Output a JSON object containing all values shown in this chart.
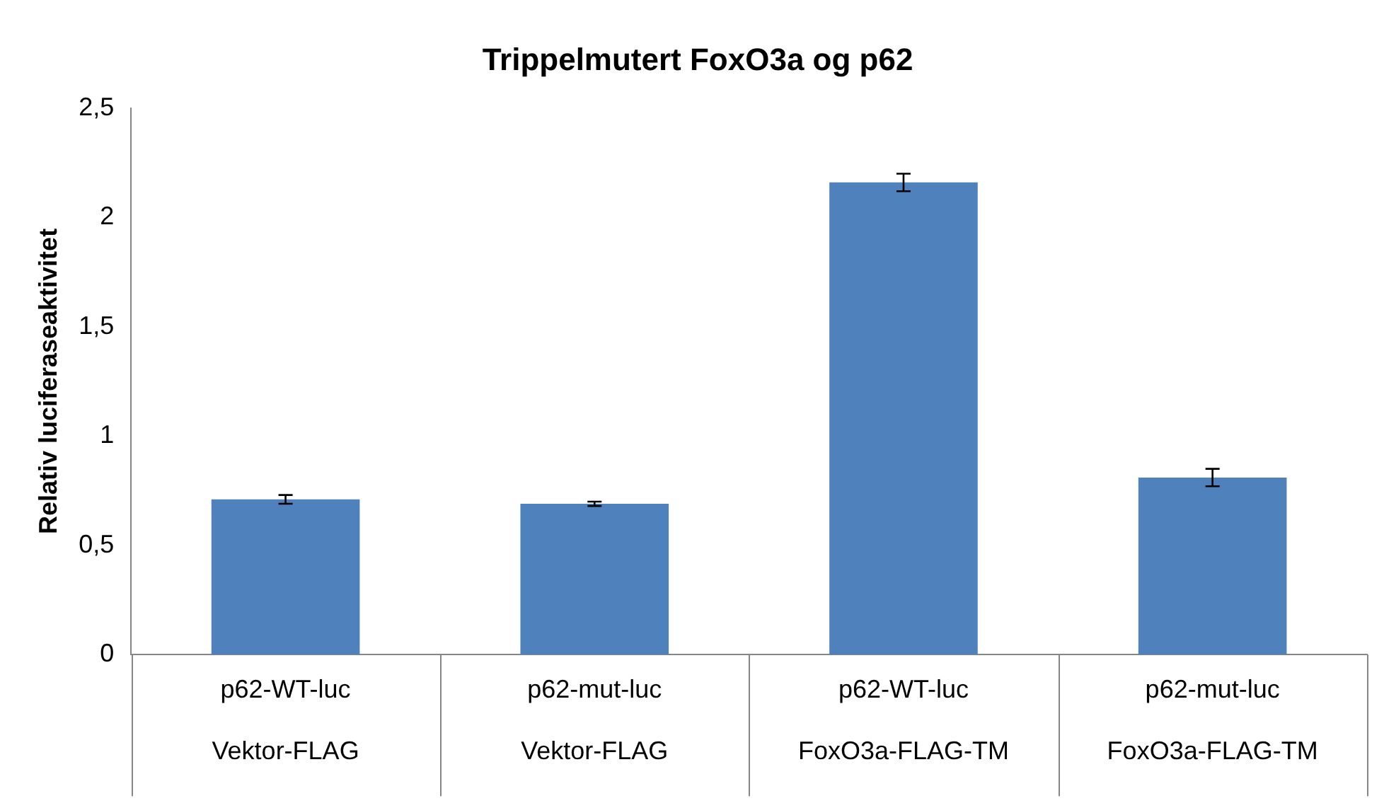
{
  "chart_data": {
    "type": "bar",
    "title": "Trippelmutert FoxO3a og p62",
    "ylabel": "Relativ luciferaseaktivitet",
    "categories": [
      "p62-WT-luc\nVektor-FLAG",
      "p62-mut-luc\nVektor-FLAG",
      "p62-WT-luc\nFoxO3a-FLAG-TM",
      "p62-mut-luc\nFoxO3a-FLAG-TM"
    ],
    "values": [
      0.71,
      0.69,
      2.16,
      0.81
    ],
    "errors": [
      0.02,
      0.01,
      0.04,
      0.04
    ],
    "color": "#4f81bd",
    "ylim": [
      0,
      2.5
    ],
    "yticks": [
      0,
      {
        "value": 0.5,
        "label": "0,5"
      },
      1,
      {
        "value": 1.5,
        "label": "1,5"
      },
      2,
      {
        "value": 2.5,
        "label": "2,5"
      }
    ],
    "grid": false,
    "legend": false
  }
}
